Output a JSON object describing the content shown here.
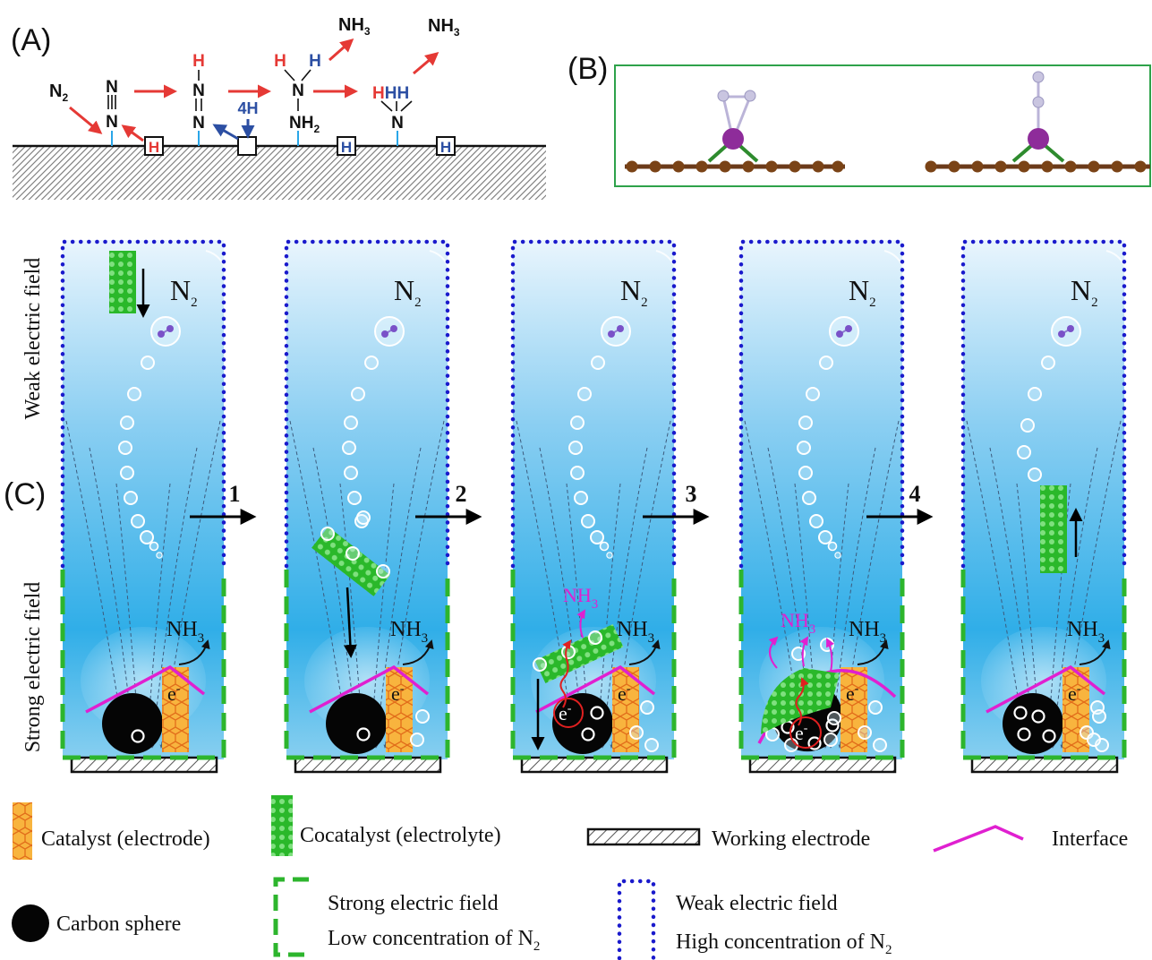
{
  "panel_labels": {
    "a": "(A)",
    "b": "(B)",
    "c": "(C)"
  },
  "panel_a": {
    "n2": "N",
    "n2_sub": "2",
    "h": "H",
    "four_h": "4H",
    "nh2": "NH",
    "nh2_sub": "2",
    "nh3": "NH",
    "nh3_sub": "3",
    "hhh": "HHH",
    "n": "N"
  },
  "panel_c": {
    "field_weak": "Weak electric field",
    "field_strong": "Strong electric field",
    "n2_label": "N",
    "n2_sub": "2",
    "nh3_label": "NH",
    "nh3_sub": "3",
    "electron": "e",
    "electron_sup": "-",
    "steps": [
      "1",
      "2",
      "3",
      "4"
    ]
  },
  "legend": {
    "catalyst": "Catalyst (electrode)",
    "cocatalyst": "Cocatalyst (electrolyte)",
    "working_electrode": "Working electrode",
    "interface": "Interface",
    "carbon_sphere": "Carbon sphere",
    "strong_field": "Strong electric field",
    "low_conc": "Low concentration of N",
    "low_conc_sub": "2",
    "weak_field": "Weak electric field",
    "high_conc": "High concentration of N",
    "high_conc_sub": "2"
  },
  "colors": {
    "red": "#e53935",
    "blue": "#2c4fa3",
    "green_dash": "#2db52d",
    "blue_dot": "#1a1acc",
    "magenta": "#e020d0",
    "catalyst_orange": "#f7b23b",
    "cocatalyst_green": "#29a829"
  }
}
